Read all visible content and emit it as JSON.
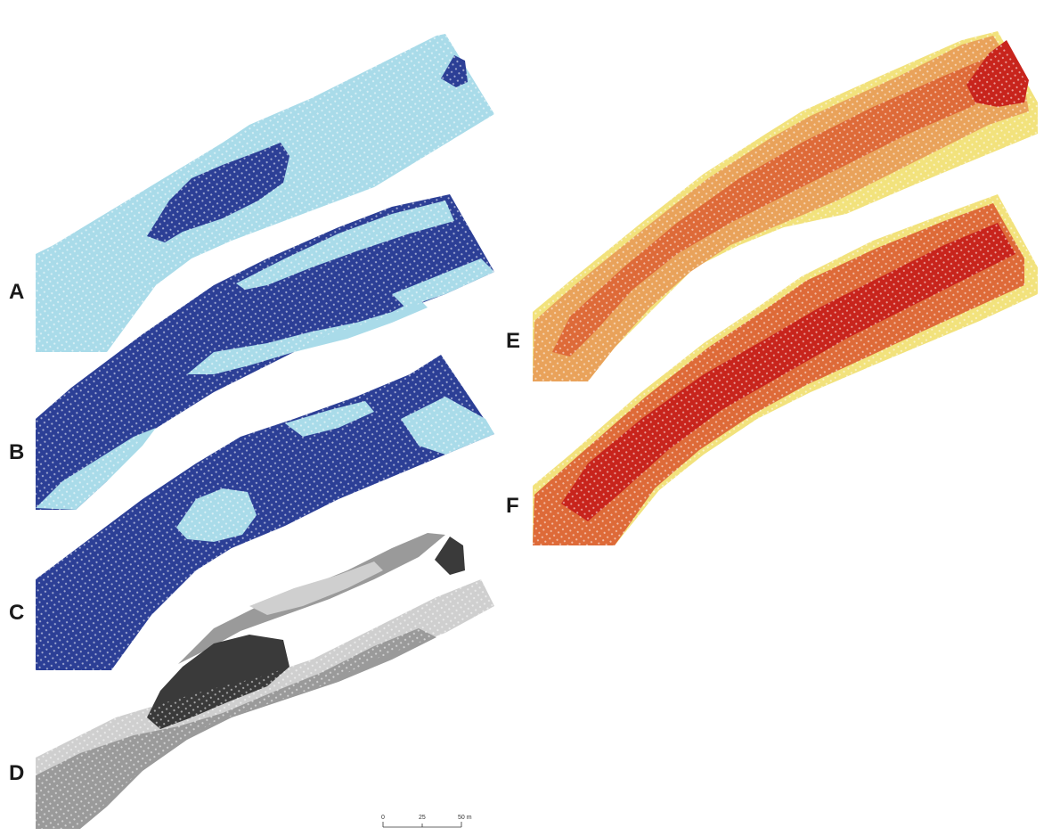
{
  "panels": [
    {
      "letter": "A"
    },
    {
      "letter": "B"
    },
    {
      "letter": "C"
    },
    {
      "letter": "D"
    },
    {
      "letter": "E"
    },
    {
      "letter": "F"
    }
  ],
  "scale_bar": {
    "tick_labels": [
      "0",
      "25",
      "50 m"
    ]
  },
  "colors": {
    "blue_light": "#a9dbe9",
    "blue_dark": "#2c3f96",
    "gray_light": "#cfcfcf",
    "gray_mid": "#9a9a9a",
    "gray_dark": "#3a3a3a",
    "warm_yellow": "#f2e27c",
    "warm_orange_light": "#e9a25a",
    "warm_orange": "#de6a38",
    "warm_red": "#c8241c"
  }
}
